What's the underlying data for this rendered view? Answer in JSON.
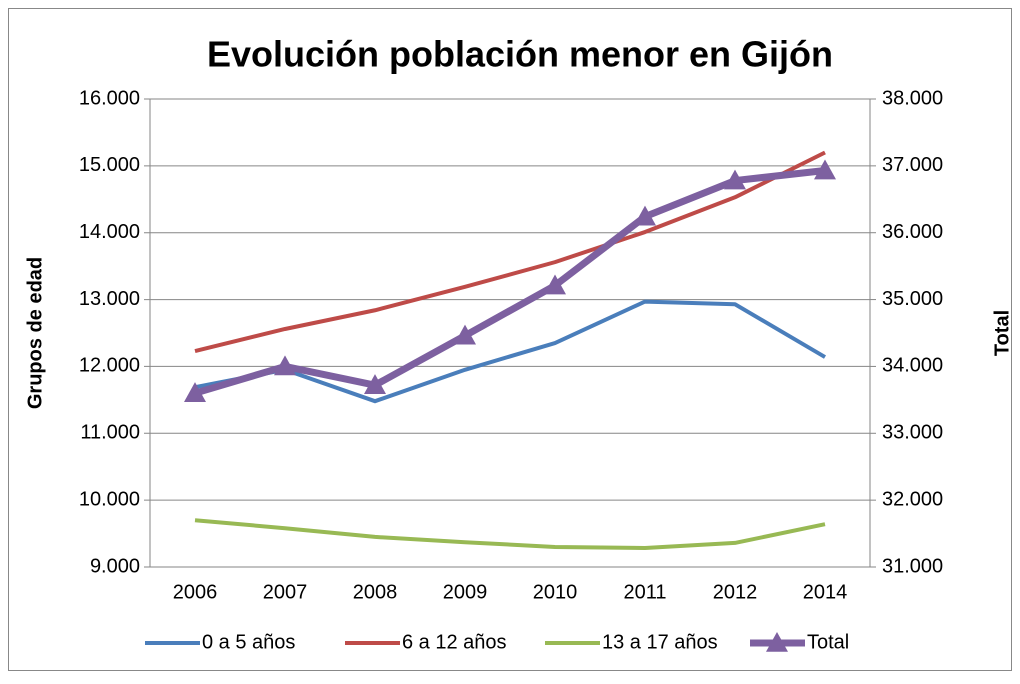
{
  "chart_data": {
    "type": "line",
    "title": "Evolución población menor en Gijón",
    "y_label": "Grupos de edad",
    "y2_label": "Total",
    "categories": [
      "2006",
      "2007",
      "2008",
      "2009",
      "2010",
      "2011",
      "2012",
      "2014"
    ],
    "ylim": [
      9000,
      16000
    ],
    "yticks": [
      {
        "value": 9000,
        "label": "9.000"
      },
      {
        "value": 10000,
        "label": "10.000"
      },
      {
        "value": 11000,
        "label": "11.000"
      },
      {
        "value": 12000,
        "label": "12.000"
      },
      {
        "value": 13000,
        "label": "13.000"
      },
      {
        "value": 14000,
        "label": "14.000"
      },
      {
        "value": 15000,
        "label": "15.000"
      },
      {
        "value": 16000,
        "label": "16.000"
      }
    ],
    "y2lim": [
      31000,
      38000
    ],
    "y2ticks": [
      {
        "value": 31000,
        "label": "31.000"
      },
      {
        "value": 32000,
        "label": "32.000"
      },
      {
        "value": 33000,
        "label": "33.000"
      },
      {
        "value": 34000,
        "label": "34.000"
      },
      {
        "value": 35000,
        "label": "35.000"
      },
      {
        "value": 36000,
        "label": "36.000"
      },
      {
        "value": 37000,
        "label": "37.000"
      },
      {
        "value": 38000,
        "label": "38.000"
      }
    ],
    "grid": true,
    "legend": "bottom",
    "series": [
      {
        "name": "0 a 5 años",
        "color": "#4a7ebb",
        "values": [
          11690,
          11950,
          11480,
          11950,
          12350,
          12970,
          12930,
          12140
        ]
      },
      {
        "name": "6 a 12 años",
        "color": "#be4b48",
        "values": [
          12230,
          12560,
          12840,
          13190,
          13560,
          14010,
          14530,
          15200
        ]
      },
      {
        "name": "13 a 17 años",
        "color": "#98b954",
        "values": [
          9700,
          9580,
          9450,
          9370,
          9300,
          9285,
          9360,
          9640
        ]
      },
      {
        "name": "Total",
        "color": "#7d60a0",
        "axis": "y2",
        "marker": "triangle",
        "values": [
          33600,
          34000,
          33720,
          34460,
          35210,
          36240,
          36780,
          36930
        ]
      }
    ]
  }
}
